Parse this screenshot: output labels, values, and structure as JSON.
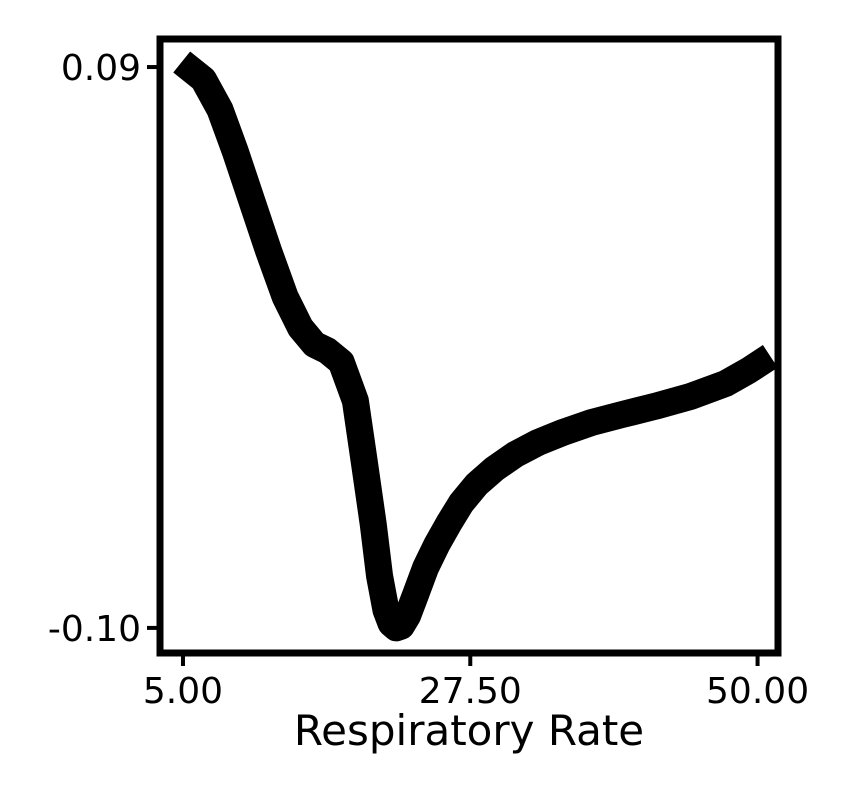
{
  "chart_data": {
    "type": "line",
    "title": "",
    "xlabel": "Respiratory Rate",
    "ylabel": "",
    "xlim": [
      3.2,
      51.6
    ],
    "ylim": [
      -0.1085,
      0.0995
    ],
    "xticks": [
      5.0,
      27.5,
      50.0
    ],
    "xtick_labels": [
      "5.00",
      "27.50",
      "50.00"
    ],
    "yticks": [
      0.09,
      -0.1
    ],
    "ytick_labels": [
      "0.09",
      "-0.10"
    ],
    "grid": false,
    "line_color": "#000000",
    "series": [
      {
        "x": [
          4.9,
          6.6,
          7.9,
          9.1,
          10.4,
          11.7,
          13.0,
          14.2,
          15.3,
          16.3,
          17.4,
          18.5,
          19.2,
          19.9,
          20.4,
          20.9,
          21.3,
          21.7,
          22.1,
          22.6,
          23.2,
          24.0,
          24.9,
          25.8,
          26.8,
          28.0,
          29.4,
          31.0,
          32.8,
          34.8,
          37.0,
          39.4,
          42.0,
          44.8,
          47.5,
          49.3,
          51.0
        ],
        "y": [
          0.0917,
          0.0858,
          0.0756,
          0.0614,
          0.0446,
          0.0278,
          0.0122,
          0.0017,
          -0.004,
          -0.0061,
          -0.01,
          -0.0231,
          -0.0438,
          -0.0648,
          -0.0825,
          -0.094,
          -0.0985,
          -0.1,
          -0.0994,
          -0.0958,
          -0.0889,
          -0.0796,
          -0.0716,
          -0.0647,
          -0.0577,
          -0.0514,
          -0.0461,
          -0.0413,
          -0.0372,
          -0.0337,
          -0.0304,
          -0.0277,
          -0.0249,
          -0.0215,
          -0.0172,
          -0.0128,
          -0.008
        ]
      }
    ]
  }
}
